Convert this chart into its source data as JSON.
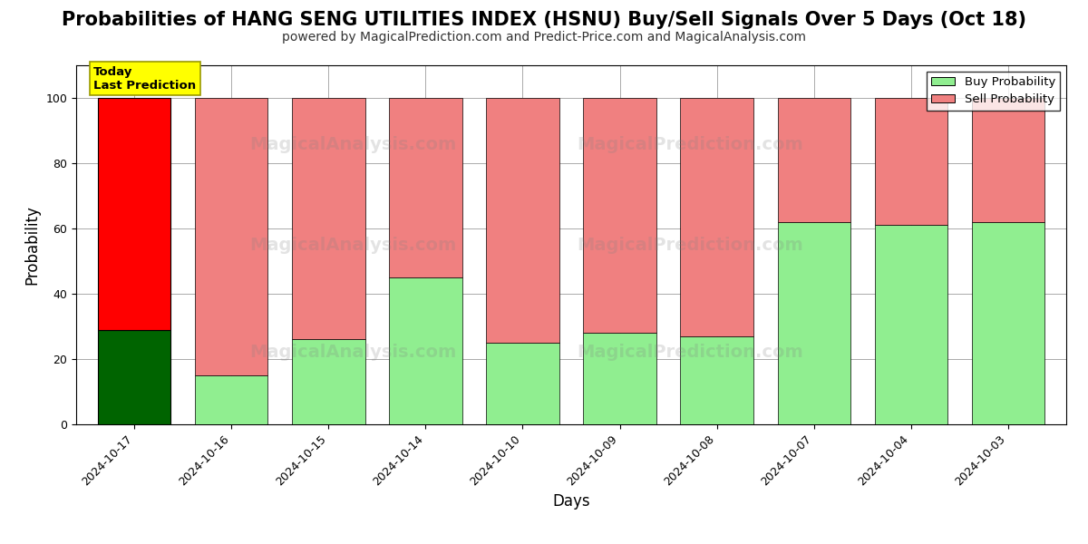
{
  "title": "Probabilities of HANG SENG UTILITIES INDEX (HSNU) Buy/Sell Signals Over 5 Days (Oct 18)",
  "subtitle": "powered by MagicalPrediction.com and Predict-Price.com and MagicalAnalysis.com",
  "xlabel": "Days",
  "ylabel": "Probability",
  "dates": [
    "2024-10-17",
    "2024-10-16",
    "2024-10-15",
    "2024-10-14",
    "2024-10-10",
    "2024-10-09",
    "2024-10-08",
    "2024-10-07",
    "2024-10-04",
    "2024-10-03"
  ],
  "buy_values": [
    29,
    15,
    26,
    45,
    25,
    28,
    27,
    62,
    61,
    62
  ],
  "sell_values": [
    71,
    85,
    74,
    55,
    75,
    72,
    73,
    38,
    39,
    38
  ],
  "today_label": "Today\nLast Prediction",
  "buy_color_today": "#006400",
  "sell_color_today": "#FF0000",
  "buy_color_normal": "#90EE90",
  "sell_color_normal": "#F08080",
  "buy_label": "Buy Probability",
  "sell_label": "Sell Probability",
  "ylim": [
    0,
    110
  ],
  "dashed_line_y": 110,
  "legend_buy_color": "#90EE90",
  "legend_sell_color": "#F08080",
  "title_fontsize": 15,
  "subtitle_fontsize": 10,
  "axis_label_fontsize": 12,
  "tick_fontsize": 9,
  "background_color": "#ffffff",
  "grid_color": "#aaaaaa"
}
